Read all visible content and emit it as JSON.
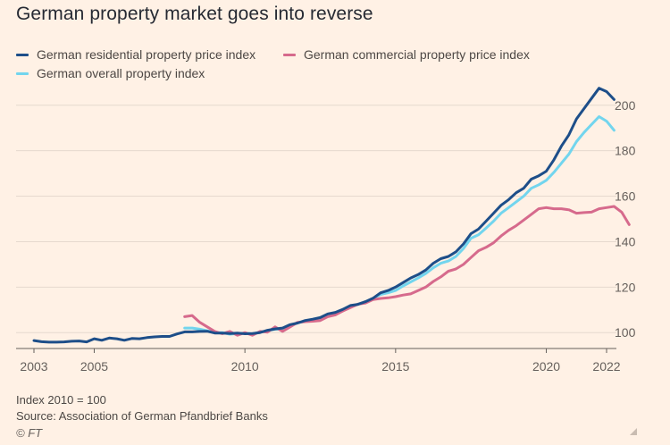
{
  "chart_data": {
    "type": "line",
    "title": "German property market goes into reverse",
    "xlabel": "",
    "ylabel": "",
    "xlim": [
      2003.0,
      2022.0
    ],
    "ylim": [
      93,
      207
    ],
    "x_ticks": [
      2003,
      2005,
      2010,
      2015,
      2020,
      2022
    ],
    "x_tick_labels": [
      "2003",
      "2005",
      "2010",
      "2015",
      "2020",
      "2022"
    ],
    "y_ticks": [
      100,
      120,
      140,
      160,
      180,
      200
    ],
    "y_tick_labels": [
      "100",
      "120",
      "140",
      "160",
      "180",
      "200"
    ],
    "gridlines": "horizontal",
    "legend_position": "top-left",
    "series": [
      {
        "name": "German residential property price index",
        "color": "#1d4e89",
        "points": [
          [
            2003.0,
            96.5
          ],
          [
            2003.25,
            96.0
          ],
          [
            2003.5,
            95.8
          ],
          [
            2003.75,
            95.8
          ],
          [
            2004.0,
            95.9
          ],
          [
            2004.25,
            96.2
          ],
          [
            2004.5,
            96.3
          ],
          [
            2004.75,
            95.9
          ],
          [
            2005.0,
            97.3
          ],
          [
            2005.25,
            96.6
          ],
          [
            2005.5,
            97.6
          ],
          [
            2005.75,
            97.3
          ],
          [
            2006.0,
            96.6
          ],
          [
            2006.25,
            97.4
          ],
          [
            2006.5,
            97.3
          ],
          [
            2006.75,
            97.8
          ],
          [
            2007.0,
            98.1
          ],
          [
            2007.25,
            98.3
          ],
          [
            2007.5,
            98.3
          ],
          [
            2007.75,
            99.4
          ],
          [
            2008.0,
            100.3
          ],
          [
            2008.25,
            100.3
          ],
          [
            2008.5,
            100.5
          ],
          [
            2008.75,
            100.6
          ],
          [
            2009.0,
            99.8
          ],
          [
            2009.25,
            99.8
          ],
          [
            2009.5,
            99.6
          ],
          [
            2009.75,
            99.8
          ],
          [
            2010.0,
            99.5
          ],
          [
            2010.25,
            99.6
          ],
          [
            2010.5,
            100.0
          ],
          [
            2010.75,
            101.0
          ],
          [
            2011.0,
            101.6
          ],
          [
            2011.25,
            102.0
          ],
          [
            2011.5,
            103.5
          ],
          [
            2011.75,
            104.2
          ],
          [
            2012.0,
            105.3
          ],
          [
            2012.25,
            105.9
          ],
          [
            2012.5,
            106.6
          ],
          [
            2012.75,
            108.2
          ],
          [
            2013.0,
            108.9
          ],
          [
            2013.25,
            110.2
          ],
          [
            2013.5,
            111.9
          ],
          [
            2013.75,
            112.4
          ],
          [
            2014.0,
            113.6
          ],
          [
            2014.25,
            115.1
          ],
          [
            2014.5,
            117.5
          ],
          [
            2014.75,
            118.5
          ],
          [
            2015.0,
            120.0
          ],
          [
            2015.25,
            122.0
          ],
          [
            2015.5,
            124.0
          ],
          [
            2015.75,
            125.5
          ],
          [
            2016.0,
            127.5
          ],
          [
            2016.25,
            130.5
          ],
          [
            2016.5,
            132.5
          ],
          [
            2016.75,
            133.5
          ],
          [
            2017.0,
            135.5
          ],
          [
            2017.25,
            139.0
          ],
          [
            2017.5,
            143.5
          ],
          [
            2017.75,
            145.5
          ],
          [
            2018.0,
            149.0
          ],
          [
            2018.25,
            152.5
          ],
          [
            2018.5,
            156.0
          ],
          [
            2018.75,
            158.5
          ],
          [
            2019.0,
            161.5
          ],
          [
            2019.25,
            163.5
          ],
          [
            2019.5,
            167.5
          ],
          [
            2019.75,
            169.0
          ],
          [
            2020.0,
            171.0
          ],
          [
            2020.25,
            176.0
          ],
          [
            2020.5,
            182.0
          ],
          [
            2020.75,
            187.0
          ],
          [
            2021.0,
            194.0
          ],
          [
            2021.25,
            198.5
          ],
          [
            2021.5,
            203.0
          ],
          [
            2021.75,
            207.5
          ],
          [
            2022.0,
            206.0
          ],
          [
            2022.25,
            202.5
          ]
        ]
      },
      {
        "name": "German commercial property price index",
        "color": "#d66a8c",
        "points": [
          [
            2008.0,
            107.0
          ],
          [
            2008.25,
            107.5
          ],
          [
            2008.5,
            104.5
          ],
          [
            2008.75,
            102.5
          ],
          [
            2009.0,
            100.5
          ],
          [
            2009.25,
            99.5
          ],
          [
            2009.5,
            100.5
          ],
          [
            2009.75,
            98.8
          ],
          [
            2010.0,
            100.0
          ],
          [
            2010.25,
            98.8
          ],
          [
            2010.5,
            100.5
          ],
          [
            2010.75,
            100.2
          ],
          [
            2011.0,
            102.5
          ],
          [
            2011.25,
            100.5
          ],
          [
            2011.5,
            102.5
          ],
          [
            2011.75,
            104.5
          ],
          [
            2012.0,
            104.8
          ],
          [
            2012.25,
            105.0
          ],
          [
            2012.5,
            105.3
          ],
          [
            2012.75,
            107.0
          ],
          [
            2013.0,
            107.8
          ],
          [
            2013.25,
            109.5
          ],
          [
            2013.5,
            111.0
          ],
          [
            2013.75,
            112.5
          ],
          [
            2014.0,
            113.0
          ],
          [
            2014.25,
            114.5
          ],
          [
            2014.5,
            115.0
          ],
          [
            2014.75,
            115.3
          ],
          [
            2015.0,
            115.8
          ],
          [
            2015.25,
            116.5
          ],
          [
            2015.5,
            117.0
          ],
          [
            2015.75,
            118.5
          ],
          [
            2016.0,
            120.0
          ],
          [
            2016.25,
            122.5
          ],
          [
            2016.5,
            124.5
          ],
          [
            2016.75,
            127.0
          ],
          [
            2017.0,
            128.0
          ],
          [
            2017.25,
            130.0
          ],
          [
            2017.5,
            133.0
          ],
          [
            2017.75,
            136.0
          ],
          [
            2018.0,
            137.5
          ],
          [
            2018.25,
            139.5
          ],
          [
            2018.5,
            142.5
          ],
          [
            2018.75,
            145.0
          ],
          [
            2019.0,
            147.0
          ],
          [
            2019.25,
            149.5
          ],
          [
            2019.5,
            152.0
          ],
          [
            2019.75,
            154.5
          ],
          [
            2020.0,
            155.0
          ],
          [
            2020.25,
            154.5
          ],
          [
            2020.5,
            154.5
          ],
          [
            2020.75,
            154.0
          ],
          [
            2021.0,
            152.5
          ],
          [
            2021.25,
            152.8
          ],
          [
            2021.5,
            153.0
          ],
          [
            2021.75,
            154.5
          ],
          [
            2022.0,
            155.0
          ],
          [
            2022.25,
            155.5
          ],
          [
            2022.5,
            153.0
          ],
          [
            2022.75,
            147.5
          ]
        ]
      },
      {
        "name": "German overall property index",
        "color": "#72d5ee",
        "points": [
          [
            2008.0,
            102.0
          ],
          [
            2008.25,
            102.0
          ],
          [
            2008.5,
            101.5
          ],
          [
            2008.75,
            100.8
          ],
          [
            2009.0,
            100.0
          ],
          [
            2009.25,
            100.0
          ],
          [
            2009.5,
            99.3
          ],
          [
            2009.75,
            99.6
          ],
          [
            2010.0,
            99.8
          ],
          [
            2010.25,
            99.5
          ],
          [
            2010.5,
            100.2
          ],
          [
            2010.75,
            100.8
          ],
          [
            2011.0,
            101.5
          ],
          [
            2011.25,
            101.5
          ],
          [
            2011.5,
            103.0
          ],
          [
            2011.75,
            104.3
          ],
          [
            2012.0,
            105.0
          ],
          [
            2012.25,
            105.5
          ],
          [
            2012.5,
            106.2
          ],
          [
            2012.75,
            107.8
          ],
          [
            2013.0,
            108.5
          ],
          [
            2013.25,
            110.0
          ],
          [
            2013.5,
            111.5
          ],
          [
            2013.75,
            112.5
          ],
          [
            2014.0,
            113.5
          ],
          [
            2014.25,
            115.0
          ],
          [
            2014.5,
            116.8
          ],
          [
            2014.75,
            117.5
          ],
          [
            2015.0,
            118.5
          ],
          [
            2015.25,
            120.5
          ],
          [
            2015.5,
            122.3
          ],
          [
            2015.75,
            124.0
          ],
          [
            2016.0,
            126.0
          ],
          [
            2016.25,
            128.5
          ],
          [
            2016.5,
            130.5
          ],
          [
            2016.75,
            131.5
          ],
          [
            2017.0,
            133.5
          ],
          [
            2017.25,
            137.0
          ],
          [
            2017.5,
            141.5
          ],
          [
            2017.75,
            143.0
          ],
          [
            2018.0,
            146.0
          ],
          [
            2018.25,
            149.0
          ],
          [
            2018.5,
            152.5
          ],
          [
            2018.75,
            155.0
          ],
          [
            2019.0,
            157.5
          ],
          [
            2019.25,
            160.0
          ],
          [
            2019.5,
            163.5
          ],
          [
            2019.75,
            165.0
          ],
          [
            2020.0,
            167.0
          ],
          [
            2020.25,
            170.5
          ],
          [
            2020.5,
            174.5
          ],
          [
            2020.75,
            178.5
          ],
          [
            2021.0,
            184.0
          ],
          [
            2021.25,
            188.0
          ],
          [
            2021.5,
            191.5
          ],
          [
            2021.75,
            195.0
          ],
          [
            2022.0,
            193.0
          ],
          [
            2022.25,
            189.0
          ]
        ]
      }
    ],
    "notes": [
      "Index 2010 = 100",
      "Source: Association of German Pfandbrief Banks"
    ],
    "credit": "© FT"
  }
}
